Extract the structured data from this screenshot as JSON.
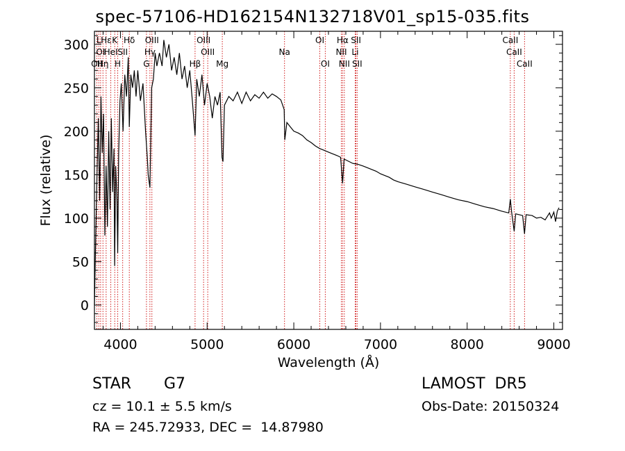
{
  "title": "spec-57106-HD162154N132718V01_sp15-035.fits",
  "info": {
    "object_class": "STAR",
    "subclass": "G7",
    "cz": "cz = 10.1 ± 5.5 km/s",
    "radec": "RA = 245.72933, DEC =  14.87980",
    "survey": "LAMOST  DR5",
    "obs_date": "Obs-Date: 20150324"
  },
  "colors": {
    "spectrum": "#000000",
    "line_marker": "#cc0000"
  },
  "chart_data": {
    "type": "line",
    "xlabel": "Wavelength (Å)",
    "ylabel": "Flux (relative)",
    "xlim": [
      3700,
      9100
    ],
    "ylim": [
      -28,
      315
    ],
    "xticks": [
      4000,
      5000,
      6000,
      7000,
      8000,
      9000
    ],
    "yticks": [
      0,
      50,
      100,
      150,
      200,
      250,
      300
    ],
    "grid": false,
    "series": [
      {
        "points": [
          [
            3700,
            0
          ],
          [
            3715,
            80
          ],
          [
            3730,
            150
          ],
          [
            3745,
            215
          ],
          [
            3760,
            120
          ],
          [
            3775,
            240
          ],
          [
            3790,
            175
          ],
          [
            3805,
            220
          ],
          [
            3820,
            80
          ],
          [
            3835,
            160
          ],
          [
            3850,
            90
          ],
          [
            3865,
            200
          ],
          [
            3880,
            110
          ],
          [
            3895,
            215
          ],
          [
            3910,
            130
          ],
          [
            3925,
            180
          ],
          [
            3933,
            45
          ],
          [
            3945,
            160
          ],
          [
            3960,
            120
          ],
          [
            3968,
            60
          ],
          [
            3980,
            175
          ],
          [
            3995,
            235
          ],
          [
            4010,
            255
          ],
          [
            4030,
            200
          ],
          [
            4050,
            265
          ],
          [
            4070,
            240
          ],
          [
            4090,
            285
          ],
          [
            4102,
            205
          ],
          [
            4120,
            265
          ],
          [
            4140,
            250
          ],
          [
            4160,
            270
          ],
          [
            4180,
            240
          ],
          [
            4200,
            270
          ],
          [
            4230,
            235
          ],
          [
            4260,
            255
          ],
          [
            4290,
            200
          ],
          [
            4310,
            170
          ],
          [
            4320,
            150
          ],
          [
            4340,
            135
          ],
          [
            4360,
            250
          ],
          [
            4380,
            260
          ],
          [
            4400,
            290
          ],
          [
            4420,
            275
          ],
          [
            4450,
            290
          ],
          [
            4480,
            275
          ],
          [
            4500,
            305
          ],
          [
            4530,
            285
          ],
          [
            4560,
            300
          ],
          [
            4590,
            270
          ],
          [
            4620,
            285
          ],
          [
            4650,
            265
          ],
          [
            4680,
            290
          ],
          [
            4710,
            260
          ],
          [
            4740,
            275
          ],
          [
            4770,
            250
          ],
          [
            4800,
            270
          ],
          [
            4830,
            235
          ],
          [
            4861,
            195
          ],
          [
            4880,
            260
          ],
          [
            4910,
            240
          ],
          [
            4940,
            265
          ],
          [
            4970,
            230
          ],
          [
            5000,
            255
          ],
          [
            5030,
            240
          ],
          [
            5060,
            215
          ],
          [
            5090,
            240
          ],
          [
            5120,
            230
          ],
          [
            5150,
            245
          ],
          [
            5172,
            170
          ],
          [
            5183,
            165
          ],
          [
            5200,
            230
          ],
          [
            5250,
            240
          ],
          [
            5300,
            235
          ],
          [
            5350,
            245
          ],
          [
            5400,
            232
          ],
          [
            5450,
            245
          ],
          [
            5500,
            235
          ],
          [
            5550,
            242
          ],
          [
            5600,
            238
          ],
          [
            5650,
            245
          ],
          [
            5700,
            238
          ],
          [
            5750,
            243
          ],
          [
            5800,
            240
          ],
          [
            5850,
            236
          ],
          [
            5889,
            225
          ],
          [
            5896,
            190
          ],
          [
            5920,
            210
          ],
          [
            5960,
            205
          ],
          [
            6000,
            200
          ],
          [
            6050,
            198
          ],
          [
            6100,
            195
          ],
          [
            6150,
            190
          ],
          [
            6200,
            187
          ],
          [
            6250,
            183
          ],
          [
            6300,
            180
          ],
          [
            6350,
            178
          ],
          [
            6400,
            176
          ],
          [
            6450,
            174
          ],
          [
            6500,
            172
          ],
          [
            6540,
            170
          ],
          [
            6563,
            140
          ],
          [
            6580,
            168
          ],
          [
            6620,
            166
          ],
          [
            6680,
            163
          ],
          [
            6740,
            162
          ],
          [
            6800,
            160
          ],
          [
            6850,
            158
          ],
          [
            6900,
            156
          ],
          [
            6950,
            154
          ],
          [
            7000,
            151
          ],
          [
            7050,
            149
          ],
          [
            7100,
            147
          ],
          [
            7150,
            144
          ],
          [
            7200,
            142
          ],
          [
            7300,
            139
          ],
          [
            7400,
            136
          ],
          [
            7500,
            133
          ],
          [
            7600,
            130
          ],
          [
            7700,
            127
          ],
          [
            7800,
            124
          ],
          [
            7900,
            121
          ],
          [
            8000,
            119
          ],
          [
            8100,
            116
          ],
          [
            8200,
            113
          ],
          [
            8300,
            111
          ],
          [
            8400,
            108
          ],
          [
            8480,
            106
          ],
          [
            8498,
            122
          ],
          [
            8512,
            108
          ],
          [
            8542,
            85
          ],
          [
            8560,
            105
          ],
          [
            8600,
            104
          ],
          [
            8640,
            103
          ],
          [
            8662,
            82
          ],
          [
            8680,
            104
          ],
          [
            8750,
            103
          ],
          [
            8800,
            100
          ],
          [
            8850,
            101
          ],
          [
            8900,
            98
          ],
          [
            8950,
            106
          ],
          [
            8970,
            100
          ],
          [
            9000,
            107
          ],
          [
            9020,
            96
          ],
          [
            9040,
            108
          ],
          [
            9060,
            112
          ]
        ]
      }
    ],
    "lines": [
      {
        "wave": 3727,
        "label": "OII",
        "row": 3
      },
      {
        "wave": 3750,
        "label": "L",
        "row": 1
      },
      {
        "wave": 3771,
        "label": "OI",
        "row": 2
      },
      {
        "wave": 3798,
        "label": "Hη",
        "row": 3
      },
      {
        "wave": 3835,
        "label": "Hε",
        "row": 1
      },
      {
        "wave": 3889,
        "label": "HeI",
        "row": 2
      },
      {
        "wave": 3934,
        "label": "K",
        "row": 1
      },
      {
        "wave": 3969,
        "label": "H",
        "row": 3
      },
      {
        "wave": 4026,
        "label": "SII",
        "row": 2
      },
      {
        "wave": 4102,
        "label": "Hδ",
        "row": 1
      },
      {
        "wave": 4340,
        "label": "Hγ",
        "row": 2
      },
      {
        "wave": 4363,
        "label": "OIII",
        "row": 1
      },
      {
        "wave": 4300,
        "label": "G",
        "row": 3
      },
      {
        "wave": 4861,
        "label": "Hβ",
        "row": 3
      },
      {
        "wave": 4959,
        "label": "OIII",
        "row": 1
      },
      {
        "wave": 5007,
        "label": "OIII",
        "row": 2
      },
      {
        "wave": 5175,
        "label": "Mg",
        "row": 3
      },
      {
        "wave": 5893,
        "label": "Na",
        "row": 2
      },
      {
        "wave": 6300,
        "label": "OI",
        "row": 1
      },
      {
        "wave": 6363,
        "label": "OI",
        "row": 3
      },
      {
        "wave": 6548,
        "label": "NII",
        "row": 2
      },
      {
        "wave": 6563,
        "label": "Hα",
        "row": 1
      },
      {
        "wave": 6583,
        "label": "NII",
        "row": 3
      },
      {
        "wave": 6708,
        "label": "Li",
        "row": 2
      },
      {
        "wave": 6717,
        "label": "SII",
        "row": 1
      },
      {
        "wave": 6731,
        "label": "SII",
        "row": 3
      },
      {
        "wave": 8498,
        "label": "CaII",
        "row": 1
      },
      {
        "wave": 8542,
        "label": "CaII",
        "row": 2
      },
      {
        "wave": 8662,
        "label": "CaII",
        "row": 3
      }
    ]
  }
}
